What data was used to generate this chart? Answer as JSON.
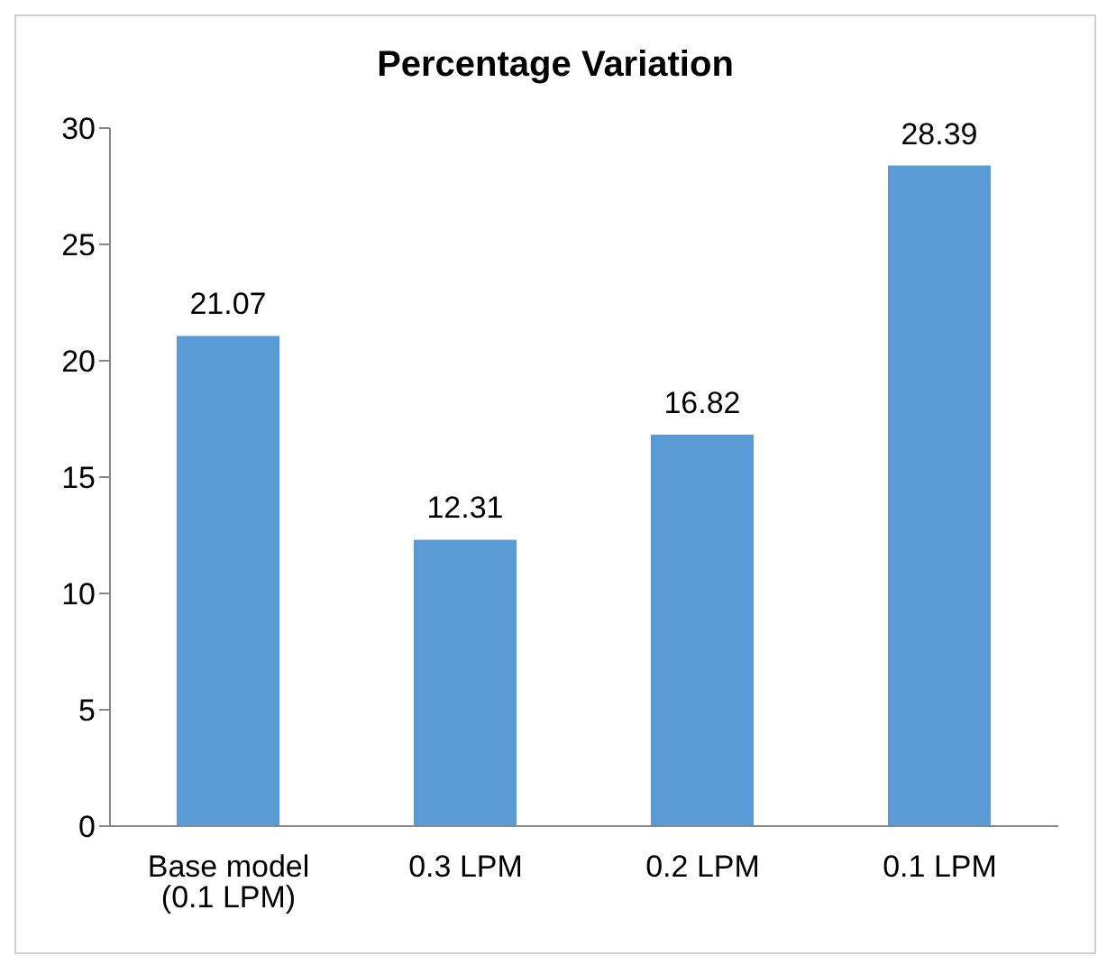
{
  "chart_data": {
    "type": "bar",
    "title": "Percentage Variation",
    "categories": [
      "Base model (0.1 LPM)",
      "0.3 LPM",
      "0.2 LPM",
      "0.1 LPM"
    ],
    "values": [
      21.07,
      12.31,
      16.82,
      28.39
    ],
    "color": "#5b9bd5",
    "ylim": [
      0,
      30
    ],
    "yticks": [
      0,
      5,
      10,
      15,
      20,
      25,
      30
    ],
    "grid": false,
    "data_labels": true
  }
}
